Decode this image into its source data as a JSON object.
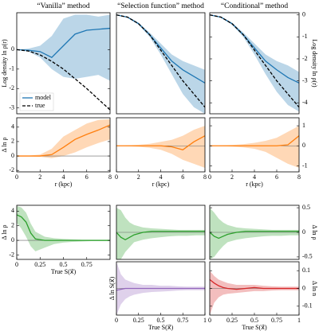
{
  "chart_data": [
    {
      "type": "line",
      "title": "“Vanilla” method",
      "ylabel": "Log density ln ρ(r)",
      "ylabel_side": "left",
      "ytick_side": "left",
      "xlim": [
        0,
        8
      ],
      "ylim": [
        -3.3,
        1.9
      ],
      "yticks": [
        0,
        -1,
        -2,
        -3
      ],
      "legend": "lower left",
      "x": [
        0,
        1,
        2,
        3,
        4,
        5,
        6,
        7,
        8
      ],
      "series": [
        {
          "name": "model",
          "color": "#1f77b4",
          "values": [
            0,
            -0.03,
            -0.1,
            -0.4,
            0.2,
            0.8,
            1.0,
            1.05,
            1.1
          ],
          "upper": [
            0,
            0.05,
            0.2,
            0.7,
            1.6,
            1.8,
            1.8,
            1.7,
            1.8
          ],
          "lower": [
            0,
            -0.1,
            -0.4,
            -1.0,
            -1.4,
            -1.5,
            -1.4,
            -1.3,
            -1.6
          ]
        },
        {
          "name": "true",
          "color": "#000000",
          "dashed": true,
          "values": [
            0,
            -0.07,
            -0.27,
            -0.6,
            -1.0,
            -1.5,
            -2.0,
            -2.55,
            -3.1
          ]
        }
      ]
    },
    {
      "type": "line",
      "title": "“Selection function” method",
      "xlim": [
        0,
        8
      ],
      "ylim": [
        -4.5,
        0.1
      ],
      "x": [
        0,
        1,
        2,
        3,
        4,
        5,
        6,
        7,
        8
      ],
      "series": [
        {
          "color": "#1f77b4",
          "values": [
            0,
            -0.1,
            -0.4,
            -0.9,
            -1.5,
            -2.1,
            -2.5,
            -2.8,
            -3.1
          ],
          "upper": [
            0,
            -0.08,
            -0.35,
            -0.8,
            -1.3,
            -1.8,
            -2.1,
            -2.3,
            -2.5
          ],
          "lower": [
            0,
            -0.12,
            -0.45,
            -1.0,
            -1.8,
            -2.7,
            -3.6,
            -4.2,
            -4.5
          ]
        },
        {
          "color": "#000000",
          "dashed": true,
          "values": [
            0,
            -0.1,
            -0.4,
            -0.9,
            -1.6,
            -2.3,
            -3.0,
            -3.6,
            -4.2
          ]
        }
      ]
    },
    {
      "type": "line",
      "title": "“Conditional” method",
      "ylabel": "Log density ln ρ(r)",
      "ylabel_side": "right",
      "ytick_side": "right",
      "xlim": [
        0,
        8
      ],
      "ylim": [
        -4.5,
        0.1
      ],
      "yticks": [
        0,
        -1,
        -2,
        -3,
        -4
      ],
      "x": [
        0,
        1,
        2,
        3,
        4,
        5,
        6,
        7,
        8
      ],
      "series": [
        {
          "color": "#1f77b4",
          "values": [
            0,
            -0.1,
            -0.4,
            -0.9,
            -1.5,
            -2.1,
            -2.5,
            -2.85,
            -3.1
          ],
          "upper": [
            0,
            -0.08,
            -0.35,
            -0.8,
            -1.3,
            -1.8,
            -2.1,
            -2.3,
            -2.6
          ],
          "lower": [
            0,
            -0.12,
            -0.45,
            -1.0,
            -1.8,
            -2.7,
            -3.5,
            -4.1,
            -4.4
          ]
        },
        {
          "color": "#000000",
          "dashed": true,
          "values": [
            0,
            -0.1,
            -0.4,
            -0.9,
            -1.6,
            -2.3,
            -3.0,
            -3.6,
            -4.2
          ]
        }
      ]
    },
    {
      "type": "line",
      "ylabel": "Δ ln ρ",
      "ylabel_side": "left",
      "ytick_side": "left",
      "xlabel": "r (kpc)",
      "zero_line": true,
      "xlim": [
        0,
        8
      ],
      "ylim": [
        -2.2,
        5.3
      ],
      "xticks": [
        0,
        2,
        4,
        6,
        8
      ],
      "yticks": [
        -2,
        0,
        2,
        4
      ],
      "x": [
        0,
        1,
        2,
        3,
        4,
        5,
        6,
        7,
        8
      ],
      "series": [
        {
          "color": "#ff7f0e",
          "values": [
            0,
            0,
            0,
            0.2,
            1.2,
            2.3,
            3.0,
            3.6,
            4.3
          ],
          "upper": [
            0,
            0.05,
            0.2,
            1.0,
            2.7,
            3.6,
            4.5,
            5.0,
            5.1
          ],
          "lower": [
            0,
            -0.05,
            -0.1,
            -0.3,
            0,
            0.5,
            1.2,
            1.8,
            2.3
          ]
        }
      ]
    },
    {
      "type": "line",
      "xlabel": "r (kpc)",
      "zero_line": true,
      "xlim": [
        0,
        8
      ],
      "ylim": [
        -1.3,
        1.4
      ],
      "xticks": [
        0,
        2,
        4,
        6,
        8
      ],
      "x": [
        0,
        1,
        2,
        3,
        4,
        5,
        6,
        7,
        8
      ],
      "series": [
        {
          "color": "#ff7f0e",
          "values": [
            0,
            0,
            0,
            0,
            0,
            -0.05,
            -0.2,
            0.2,
            0.5
          ],
          "upper": [
            0,
            0.02,
            0.05,
            0.1,
            0.2,
            0.3,
            0.5,
            0.8,
            1.0
          ],
          "lower": [
            0,
            -0.02,
            -0.05,
            -0.1,
            -0.2,
            -0.4,
            -0.7,
            -0.9,
            -1.1
          ]
        }
      ]
    },
    {
      "type": "line",
      "xlabel": "r (kpc)",
      "ytick_side": "right",
      "zero_line": true,
      "xlim": [
        0,
        8
      ],
      "ylim": [
        -1.3,
        1.4
      ],
      "xticks": [
        0,
        2,
        4,
        6,
        8
      ],
      "yticks": [
        1,
        0,
        -1
      ],
      "x": [
        0,
        1,
        2,
        3,
        4,
        5,
        6,
        7,
        8
      ],
      "series": [
        {
          "color": "#ff7f0e",
          "values": [
            0,
            0,
            0,
            0,
            0,
            0,
            0,
            0.05,
            0.5
          ],
          "upper": [
            0,
            0.02,
            0.04,
            0.08,
            0.15,
            0.25,
            0.4,
            0.7,
            1.0
          ],
          "lower": [
            0,
            -0.02,
            -0.04,
            -0.08,
            -0.15,
            -0.3,
            -0.6,
            -0.9,
            -1.1
          ]
        }
      ]
    },
    {
      "type": "line",
      "ylabel": "Δ ln ρ",
      "ylabel_side": "left",
      "ytick_side": "left",
      "xlabel": "True S(x⃗)",
      "zero_line": true,
      "xlim": [
        0,
        1
      ],
      "ylim": [
        -2.6,
        4.8
      ],
      "xticks": [
        0,
        0.25,
        0.5,
        0.75
      ],
      "yticks": [
        -2,
        0,
        2,
        4
      ],
      "x": [
        0,
        0.05,
        0.1,
        0.15,
        0.2,
        0.3,
        0.4,
        0.5,
        0.6,
        0.7,
        0.8,
        0.9,
        1
      ],
      "series": [
        {
          "color": "#2ca02c",
          "values": [
            3.5,
            3.2,
            2.5,
            1.0,
            0.2,
            0,
            0,
            0,
            0,
            0,
            0,
            0,
            0
          ],
          "upper": [
            4.7,
            4.5,
            3.8,
            2.3,
            1.2,
            0.5,
            0.3,
            0.2,
            0.15,
            0.1,
            0.1,
            0.1,
            0.1
          ],
          "lower": [
            2.4,
            1.6,
            0.5,
            -0.8,
            -1.5,
            -1.0,
            -0.5,
            -0.3,
            -0.2,
            -0.15,
            -0.1,
            -0.1,
            -0.1
          ]
        }
      ]
    },
    {
      "type": "line",
      "zero_line": true,
      "xlim": [
        0,
        1
      ],
      "ylim": [
        -0.55,
        0.55
      ],
      "x": [
        0,
        0.05,
        0.1,
        0.15,
        0.2,
        0.3,
        0.4,
        0.5,
        0.6,
        0.7,
        0.8,
        0.9,
        1
      ],
      "series": [
        {
          "color": "#2ca02c",
          "values": [
            0,
            -0.1,
            -0.15,
            -0.1,
            -0.05,
            0,
            0.02,
            0.02,
            0.02,
            0.02,
            0.02,
            0.02,
            0.02
          ],
          "upper": [
            0.5,
            0.45,
            0.3,
            0.2,
            0.15,
            0.1,
            0.08,
            0.07,
            0.06,
            0.05,
            0.05,
            0.05,
            0.05
          ],
          "lower": [
            -0.55,
            -0.55,
            -0.4,
            -0.3,
            -0.2,
            -0.15,
            -0.12,
            -0.1,
            -0.08,
            -0.07,
            -0.07,
            -0.06,
            -0.06
          ]
        }
      ]
    },
    {
      "type": "line",
      "ylabel": "Δ ln ρ",
      "ylabel_side": "right",
      "ytick_side": "right",
      "zero_line": true,
      "xlim": [
        0,
        1
      ],
      "ylim": [
        -0.55,
        0.55
      ],
      "yticks": [
        0.5,
        0,
        -0.5
      ],
      "x": [
        0,
        0.05,
        0.1,
        0.15,
        0.2,
        0.3,
        0.4,
        0.5,
        0.6,
        0.7,
        0.8,
        0.9,
        1
      ],
      "series": [
        {
          "color": "#2ca02c",
          "values": [
            0,
            -0.08,
            -0.12,
            -0.08,
            -0.04,
            0,
            0.02,
            0.02,
            0.02,
            0.02,
            0.02,
            0.02,
            0.02
          ],
          "upper": [
            0.5,
            0.4,
            0.28,
            0.2,
            0.15,
            0.1,
            0.08,
            0.07,
            0.06,
            0.05,
            0.05,
            0.05,
            0.05
          ],
          "lower": [
            -0.55,
            -0.5,
            -0.38,
            -0.28,
            -0.2,
            -0.15,
            -0.12,
            -0.1,
            -0.08,
            -0.07,
            -0.07,
            -0.06,
            -0.06
          ]
        }
      ]
    },
    {
      "type": "line",
      "ylabel": "Δ ln S(x⃗)",
      "ylabel_side": "left",
      "xlabel": "True S(x⃗)",
      "zero_line": true,
      "xlim": [
        0,
        1
      ],
      "ylim": [
        -0.15,
        0.15
      ],
      "xticks": [
        0,
        0.25,
        0.5,
        0.75,
        1
      ],
      "x": [
        0,
        0.05,
        0.1,
        0.15,
        0.2,
        0.3,
        0.4,
        0.5,
        0.6,
        0.7,
        0.8,
        0.9,
        1
      ],
      "series": [
        {
          "color": "#9467bd",
          "values": [
            -0.01,
            -0.005,
            0,
            0,
            0,
            0,
            0,
            0,
            0,
            0,
            0,
            0,
            0
          ],
          "upper": [
            0.15,
            0.08,
            0.05,
            0.04,
            0.03,
            0.02,
            0.02,
            0.015,
            0.015,
            0.012,
            0.01,
            0.01,
            0.01
          ],
          "lower": [
            -0.15,
            -0.09,
            -0.06,
            -0.045,
            -0.035,
            -0.025,
            -0.02,
            -0.018,
            -0.015,
            -0.012,
            -0.01,
            -0.01,
            -0.01
          ]
        }
      ]
    },
    {
      "type": "line",
      "ylabel": "Δ ln n",
      "ylabel_side": "right",
      "ytick_side": "right",
      "xlabel": "True S(x⃗)",
      "zero_line": true,
      "xlim": [
        0,
        1
      ],
      "ylim": [
        -0.15,
        0.15
      ],
      "xticks": [
        0,
        0.25,
        0.5,
        0.75,
        1
      ],
      "yticks": [
        0.1,
        0,
        -0.1
      ],
      "x": [
        0,
        0.05,
        0.1,
        0.15,
        0.2,
        0.3,
        0.4,
        0.5,
        0.6,
        0.7,
        0.8,
        0.9,
        1
      ],
      "series": [
        {
          "color": "#d62728",
          "values": [
            0.05,
            0.03,
            0.015,
            0.005,
            0,
            -0.005,
            0,
            0.005,
            0,
            0,
            0,
            0,
            0
          ],
          "upper": [
            0.1,
            0.07,
            0.05,
            0.04,
            0.03,
            0.02,
            0.02,
            0.02,
            0.015,
            0.012,
            0.01,
            0.01,
            0.01
          ],
          "lower": [
            -0.15,
            -0.08,
            -0.05,
            -0.035,
            -0.03,
            -0.025,
            -0.02,
            -0.015,
            -0.015,
            -0.012,
            -0.01,
            -0.01,
            -0.01
          ]
        }
      ]
    }
  ]
}
